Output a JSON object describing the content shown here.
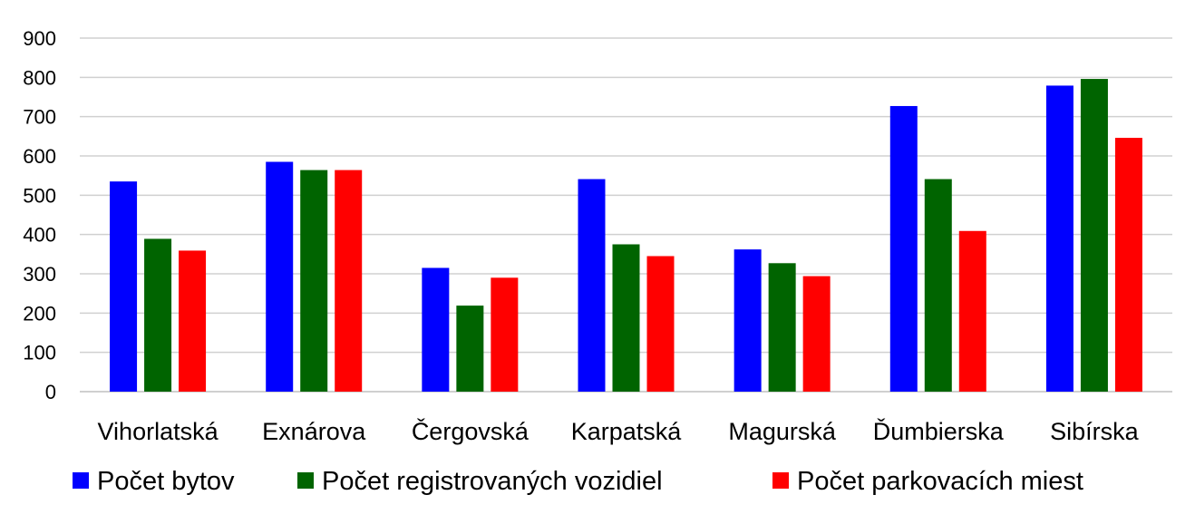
{
  "chart_data": {
    "type": "bar",
    "categories": [
      "Vihorlatská",
      "Exnárova",
      "Čergovská",
      "Karpatská",
      "Magurská",
      "Ďumbierska",
      "Sibírska"
    ],
    "series": [
      {
        "name": "Počet bytov",
        "color": "#0000FF",
        "values": [
          535,
          585,
          315,
          541,
          362,
          727,
          779
        ]
      },
      {
        "name": "Počet registrovaných vozidiel",
        "color": "#006400",
        "values": [
          389,
          564,
          219,
          375,
          327,
          541,
          796
        ]
      },
      {
        "name": "Počet parkovacích miest",
        "color": "#FF0000",
        "values": [
          359,
          564,
          290,
          345,
          294,
          409,
          646
        ]
      }
    ],
    "yticks": [
      "0",
      "100",
      "200",
      "300",
      "400",
      "500",
      "600",
      "700",
      "800",
      "900"
    ],
    "ylim": [
      0,
      900
    ],
    "grid": true,
    "legend_position": "bottom"
  }
}
